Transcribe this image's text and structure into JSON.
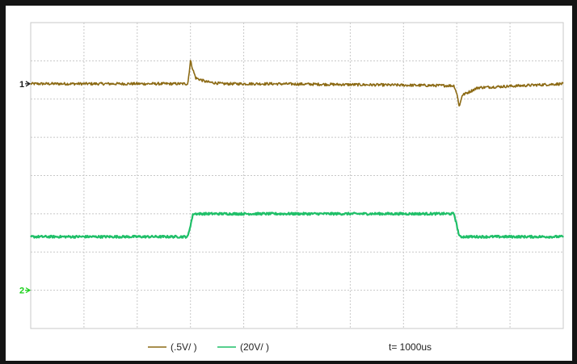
{
  "chart_data": {
    "type": "line",
    "title": "",
    "xlabel": "",
    "ylabel": "",
    "grid": true,
    "grid_divisions": {
      "x": 10,
      "y": 8
    },
    "channel_markers": [
      {
        "label": "1",
        "color": "#1a1a1a",
        "reference_div": 6.4
      },
      {
        "label": "2",
        "color": "#18d018",
        "reference_div": 1.0
      }
    ],
    "legend_placement": "bottom",
    "series": [
      {
        "channel": "1",
        "legend": "(.5V/ )",
        "color": "#8c6a14",
        "x_div": [
          0,
          2.95,
          3.0,
          3.05,
          3.1,
          3.3,
          3.6,
          4.5,
          7.95,
          8.0,
          8.05,
          8.1,
          8.4,
          10
        ],
        "y_div": [
          6.4,
          6.4,
          7.0,
          6.75,
          6.55,
          6.45,
          6.4,
          6.4,
          6.35,
          6.15,
          5.8,
          6.1,
          6.3,
          6.4
        ]
      },
      {
        "channel": "2",
        "legend": "(20V/ )",
        "color": "#1fbf68",
        "x_div": [
          0,
          2.95,
          3.05,
          7.95,
          8.05,
          10
        ],
        "y_div": [
          2.4,
          2.4,
          3.0,
          3.0,
          2.4,
          2.4
        ]
      }
    ],
    "timebase": "t= 1000us"
  },
  "colors": {
    "frame": "#141414",
    "grid": "#c8c8c8"
  }
}
